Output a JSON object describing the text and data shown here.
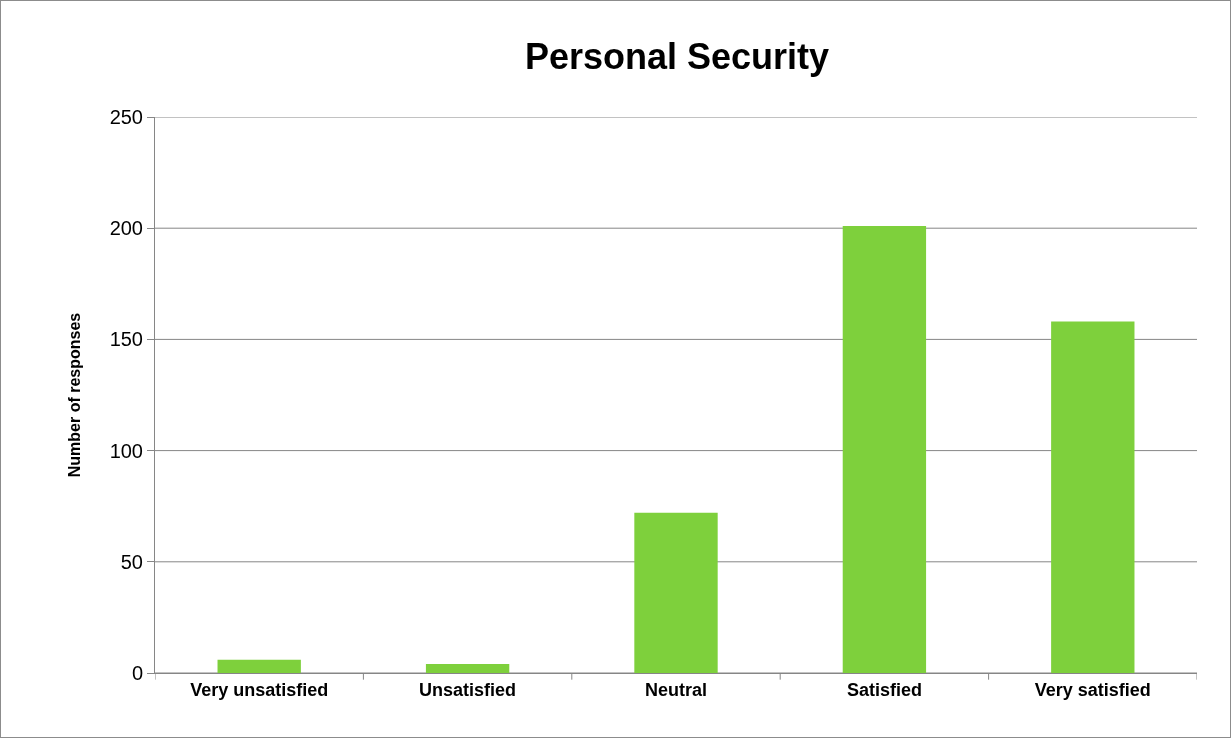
{
  "chart_data": {
    "type": "bar",
    "title": "Personal Security",
    "ylabel": "Number of responses",
    "categories": [
      "Very unsatisfied",
      "Unsatisfied",
      "Neutral",
      "Satisfied",
      "Very satisfied"
    ],
    "values": [
      6,
      4,
      72,
      201,
      158
    ],
    "color": "#7ed03c",
    "ylim": [
      0,
      250
    ],
    "yticks": [
      0,
      50,
      100,
      150,
      200,
      250
    ],
    "grid": "y"
  }
}
